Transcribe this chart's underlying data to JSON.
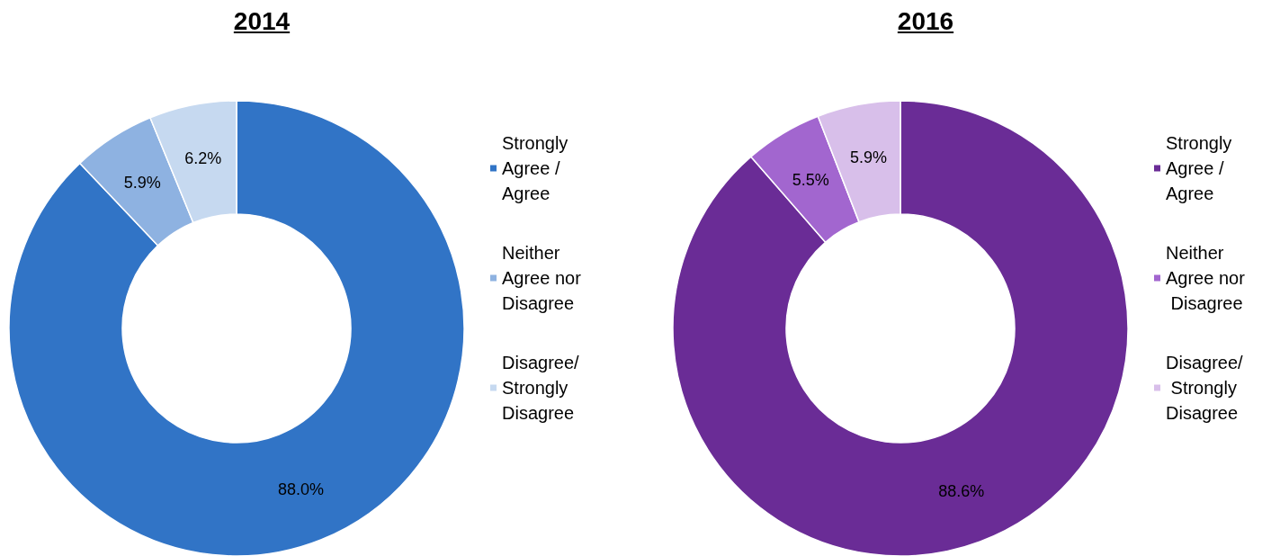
{
  "chart_data": [
    {
      "type": "donut",
      "title": "2014",
      "categories": [
        "Strongly Agree / Agree",
        "Neither Agree nor Disagree",
        "Disagree/ Strongly Disagree"
      ],
      "values": [
        88.0,
        5.9,
        6.2
      ],
      "value_labels": [
        "88.0%",
        "5.9%",
        "6.2%"
      ],
      "colors": [
        "#3174c6",
        "#8eb2e1",
        "#c6d9f0"
      ],
      "legend": "right"
    },
    {
      "type": "donut",
      "title": "2016",
      "categories": [
        "Strongly Agree / Agree",
        "Neither Agree nor Disagree",
        "Disagree/ Strongly Disagree"
      ],
      "values": [
        88.6,
        5.5,
        5.9
      ],
      "value_labels": [
        "88.6%",
        "5.5%",
        "5.9%"
      ],
      "colors": [
        "#6a2c96",
        "#a266cf",
        "#d8bfea"
      ],
      "legend": "right"
    }
  ]
}
